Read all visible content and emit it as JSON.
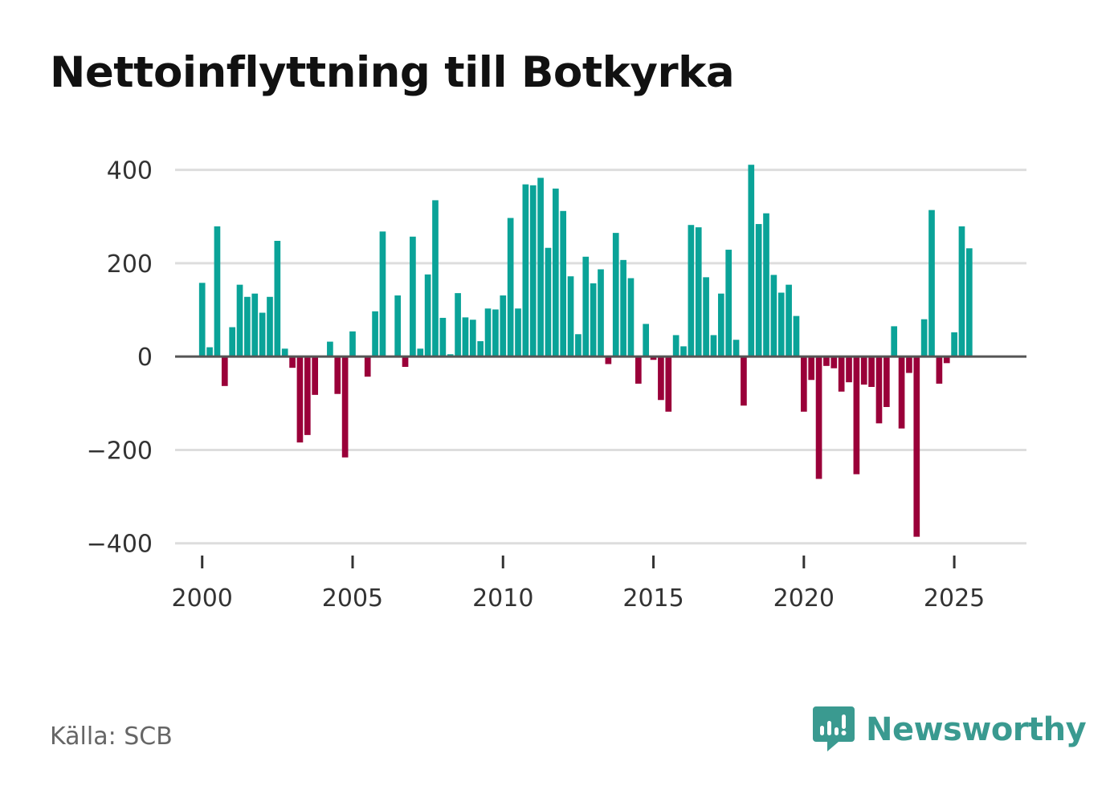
{
  "title": "Nettoinflyttning till Botkyrka",
  "source": "Källa: SCB",
  "brand": "Newsworthy",
  "colors": {
    "positive": "#0aa398",
    "negative": "#9a0039",
    "grid": "#dddddd",
    "zero": "#555555",
    "brand": "#3a9a90"
  },
  "chart_data": {
    "type": "bar",
    "title": "Nettoinflyttning till Botkyrka",
    "xlabel": "",
    "ylabel": "",
    "x_unit": "quarter",
    "start": "2000Q1",
    "ylim": [
      -440,
      420
    ],
    "xlim": [
      1999.1,
      2027.4
    ],
    "yticks": [
      400,
      200,
      0,
      -200,
      -400
    ],
    "ytick_labels": [
      "400",
      "200",
      "0",
      "−200",
      "−400"
    ],
    "xticks": [
      2000,
      2005,
      2010,
      2015,
      2020,
      2025
    ],
    "xtick_labels": [
      "2000",
      "2005",
      "2010",
      "2015",
      "2020",
      "2025"
    ],
    "series": [
      {
        "name": "Nettoinflyttning",
        "values": [
          158,
          20,
          279,
          -63,
          63,
          154,
          128,
          135,
          94,
          128,
          248,
          17,
          -24,
          -184,
          -168,
          -82,
          0,
          32,
          -80,
          -216,
          54,
          0,
          -43,
          97,
          268,
          0,
          131,
          -22,
          257,
          17,
          176,
          335,
          83,
          5,
          136,
          84,
          79,
          33,
          103,
          101,
          131,
          297,
          103,
          369,
          367,
          383,
          233,
          360,
          312,
          172,
          48,
          214,
          157,
          187,
          -16,
          265,
          207,
          168,
          -58,
          70,
          -7,
          -93,
          -118,
          46,
          22,
          282,
          277,
          170,
          46,
          135,
          229,
          36,
          -105,
          411,
          284,
          307,
          175,
          137,
          154,
          87,
          -118,
          -50,
          -262,
          -20,
          -25,
          -75,
          -55,
          -252,
          -60,
          -65,
          -143,
          -108,
          65,
          -154,
          -35,
          -386,
          80,
          314,
          -58,
          -14,
          52,
          279,
          232
        ]
      }
    ]
  }
}
